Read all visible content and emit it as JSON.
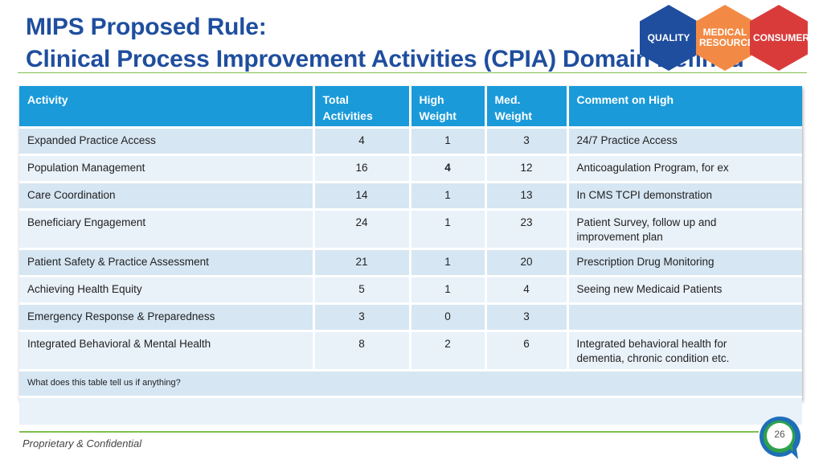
{
  "title": {
    "line1": "MIPS Proposed Rule:",
    "line2": "Clinical Process Improvement Activities (CPIA) Domain Defined"
  },
  "logo": {
    "quality": "QUALITY",
    "medical_line1": "MEDICAL",
    "medical_line2": "RESOURCES",
    "consumer": "CONSUMER",
    "colors": {
      "quality": "#1f4e9e",
      "medical": "#f28a45",
      "consumer": "#d93b3b"
    }
  },
  "table": {
    "headers": {
      "activity": "Activity",
      "total_line1": "Total",
      "total_line2": "Activities",
      "high_line1": "High",
      "high_line2": "Weight",
      "med_line1": "Med.",
      "med_line2": "Weight",
      "comment": "Comment on High"
    },
    "rows": [
      {
        "activity": "Expanded Practice Access",
        "total": "4",
        "high": "1",
        "med": "3",
        "comment": "24/7 Practice Access",
        "comment2": ""
      },
      {
        "activity": "Population Management",
        "total": "16",
        "high": "4",
        "med": "12",
        "comment": "Anticoagulation Program, for ex",
        "comment2": ""
      },
      {
        "activity": "Care Coordination",
        "total": "14",
        "high": "1",
        "med": "13",
        "comment": "In CMS TCPI demonstration",
        "comment2": ""
      },
      {
        "activity": "Beneficiary Engagement",
        "total": "24",
        "high": "1",
        "med": "23",
        "comment": "Patient Survey, follow up and",
        "comment2": "improvement plan"
      },
      {
        "activity": "Patient Safety & Practice Assessment",
        "total": "21",
        "high": "1",
        "med": "20",
        "comment": "Prescription Drug Monitoring",
        "comment2": ""
      },
      {
        "activity": "Achieving Health Equity",
        "total": "5",
        "high": "1",
        "med": "4",
        "comment": "Seeing new Medicaid Patients",
        "comment2": ""
      },
      {
        "activity": "Emergency Response & Preparedness",
        "total": "3",
        "high": "0",
        "med": "3",
        "comment": "",
        "comment2": ""
      },
      {
        "activity": "Integrated Behavioral & Mental Health",
        "total": "8",
        "high": "2",
        "med": "6",
        "comment": "Integrated behavioral health for",
        "comment2": "dementia, chronic condition etc."
      }
    ],
    "question": "What does this table tell us if anything?"
  },
  "footer": {
    "text": "Proprietary & Confidential",
    "page": "26"
  },
  "colors": {
    "title": "#1f4e9e",
    "header_bg": "#1a9ad9",
    "rule": "#7fbf4f"
  }
}
